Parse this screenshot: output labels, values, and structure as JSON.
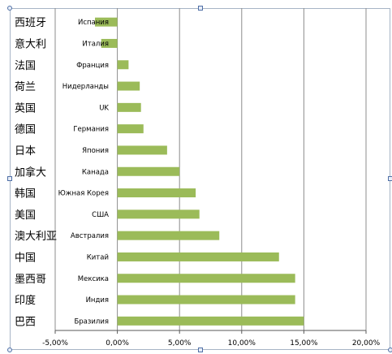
{
  "chart_data": {
    "type": "bar",
    "orientation": "horizontal",
    "categories": [
      "Испания",
      "Италия",
      "Франция",
      "Нидерланды",
      "UK",
      "Германия",
      "Япония",
      "Канада",
      "Южная Корея",
      "США",
      "Австралия",
      "Китай",
      "Мексика",
      "Индия",
      "Бразилия"
    ],
    "categories_cn": [
      "西班牙",
      "意大利",
      "法国",
      "荷兰",
      "英国",
      "德国",
      "日本",
      "加拿大",
      "韩国",
      "美国",
      "澳大利亚",
      "中国",
      "墨西哥",
      "印度",
      "巴西"
    ],
    "series": [
      {
        "values": [
          -1.8,
          -1.3,
          0.9,
          1.8,
          1.9,
          2.1,
          4.0,
          5.0,
          6.3,
          6.6,
          8.2,
          13.0,
          14.3,
          14.3,
          15.0
        ]
      }
    ],
    "x_ticks": [
      "-5,00%",
      "0,00%",
      "5,00%",
      "10,00%",
      "15,00%",
      "20,00%"
    ],
    "xlim": [
      -5,
      20
    ],
    "grid": true,
    "legend": "none",
    "bar_color": "#9bbb59",
    "grid_color": "#8c8c8c"
  }
}
